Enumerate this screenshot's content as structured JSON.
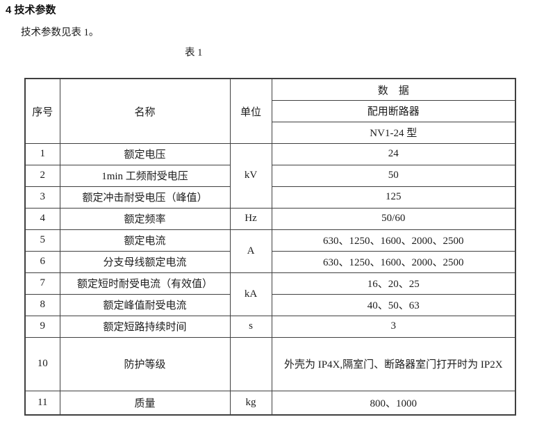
{
  "page": {
    "heading": "4  技术参数",
    "intro": "技术参数见表 1。",
    "table_caption": "表 1"
  },
  "table": {
    "header": {
      "col_seq": "序号",
      "col_name": "名称",
      "col_unit": "单位",
      "data_title": "数　据",
      "data_sub_breaker": "配用断路器",
      "data_sub_model": "NV1-24 型"
    },
    "rows": [
      {
        "seq": "1",
        "name": "额定电压",
        "unit": "kV",
        "value": "24"
      },
      {
        "seq": "2",
        "name": "1min 工频耐受电压",
        "value": "50"
      },
      {
        "seq": "3",
        "name": "额定冲击耐受电压（峰值）",
        "value": "125"
      },
      {
        "seq": "4",
        "name": "额定频率",
        "unit": "Hz",
        "value": "50/60"
      },
      {
        "seq": "5",
        "name": "额定电流",
        "unit": "A",
        "value": "630、1250、1600、2000、2500"
      },
      {
        "seq": "6",
        "name": "分支母线额定电流",
        "value": "630、1250、1600、2000、2500"
      },
      {
        "seq": "7",
        "name": "额定短时耐受电流（有效值）",
        "unit": "kA",
        "value": "16、20、25"
      },
      {
        "seq": "8",
        "name": "额定峰值耐受电流",
        "value": "40、50、63"
      },
      {
        "seq": "9",
        "name": "额定短路持续时间",
        "unit": "s",
        "value": "3"
      },
      {
        "seq": "10",
        "name": "防护等级",
        "unit": "",
        "value": "外壳为 IP4X,隔室门、断路器室门打开时为 IP2X"
      },
      {
        "seq": "11",
        "name": "质量",
        "unit": "kg",
        "value": "800、1000"
      }
    ]
  },
  "colors": {
    "background": "#ffffff",
    "text": "#1c1c1c",
    "border": "#3f3f3f"
  }
}
